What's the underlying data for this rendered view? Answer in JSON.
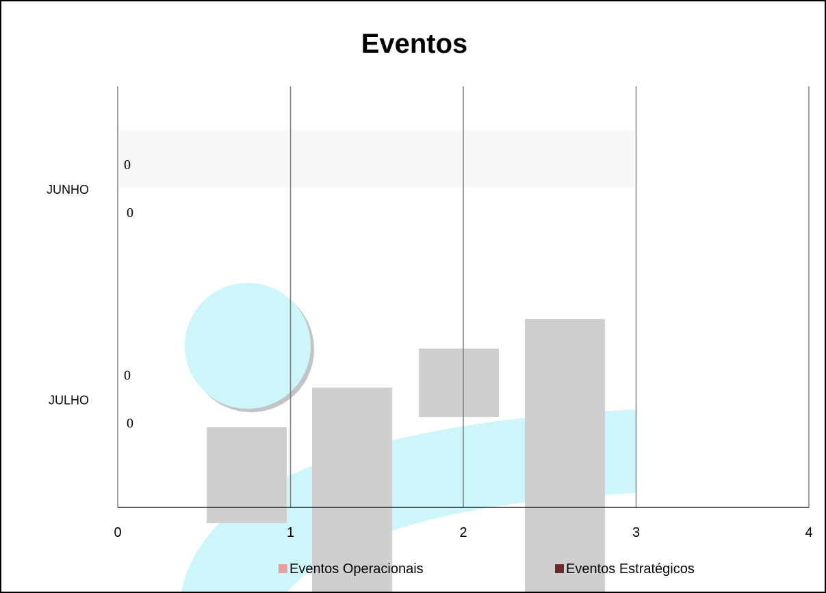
{
  "chart_data": {
    "type": "bar",
    "orientation": "horizontal",
    "title": "Eventos",
    "categories": [
      "JUNHO",
      "JULHO"
    ],
    "series": [
      {
        "name": "Eventos Operacionais",
        "values": [
          0,
          0
        ],
        "color": "#E6A0A0"
      },
      {
        "name": "Eventos Estratégicos",
        "values": [
          0,
          0
        ],
        "color": "#6B2A2A"
      }
    ],
    "data_labels": [
      "0",
      "0",
      "0",
      "0"
    ],
    "xlim": [
      0,
      4
    ],
    "x_ticks": [
      "0",
      "1",
      "2",
      "3",
      "4"
    ],
    "grid": "vertical",
    "legend_position": "bottom",
    "xlabel": "",
    "ylabel": ""
  },
  "watermark": {
    "colors": {
      "circle": "#CDF6FB",
      "bars": "#CFCFCF",
      "swoosh": "#CDF6FB"
    }
  }
}
